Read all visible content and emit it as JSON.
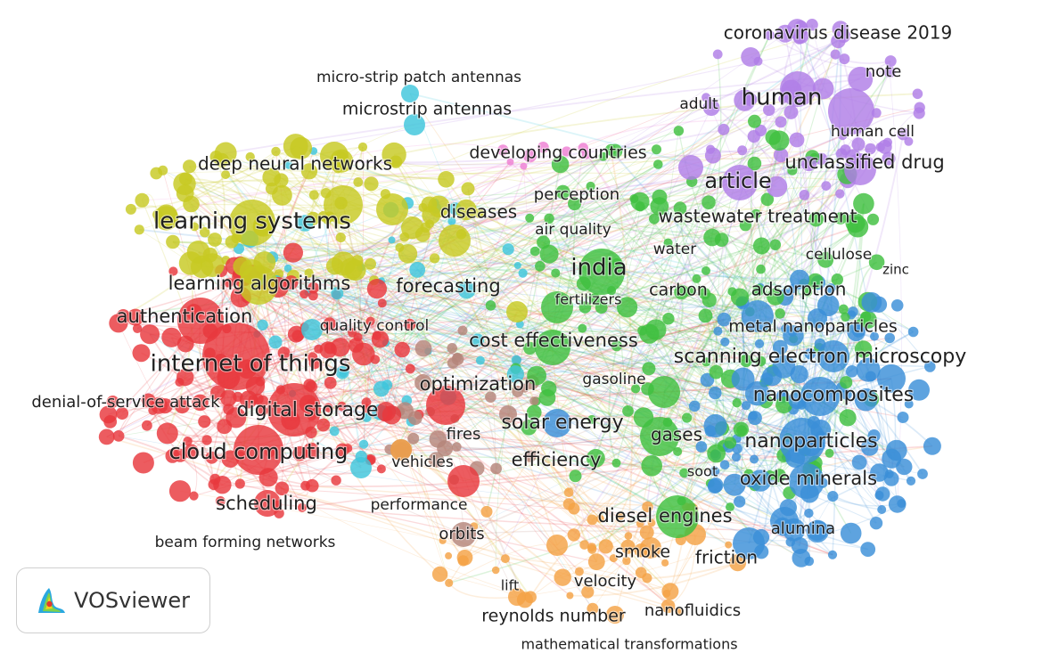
{
  "colors": {
    "red": "#e8383d",
    "yellow": "#c7c922",
    "cyan": "#3ec6dc",
    "purple": "#b07ee6",
    "green": "#3fbf3f",
    "blue": "#3b8fd8",
    "orange": "#f4a245",
    "brown": "#b5857a",
    "pink": "#ee7fd3"
  },
  "keywords": [
    {
      "label": "coronavirus disease 2019",
      "cluster": "purple"
    },
    {
      "label": "note",
      "cluster": "purple"
    },
    {
      "label": "adult",
      "cluster": "purple"
    },
    {
      "label": "human",
      "cluster": "purple"
    },
    {
      "label": "human cell",
      "cluster": "purple"
    },
    {
      "label": "article",
      "cluster": "purple"
    },
    {
      "label": "unclassified drug",
      "cluster": "purple"
    },
    {
      "label": "cellulose",
      "cluster": "purple"
    },
    {
      "label": "zinc",
      "cluster": "purple"
    },
    {
      "label": "micro-strip patch antennas",
      "cluster": "cyan"
    },
    {
      "label": "microstrip antennas",
      "cluster": "cyan"
    },
    {
      "label": "developing countries",
      "cluster": "pink"
    },
    {
      "label": "deep neural networks",
      "cluster": "yellow"
    },
    {
      "label": "learning systems",
      "cluster": "yellow"
    },
    {
      "label": "diseases",
      "cluster": "yellow"
    },
    {
      "label": "perception",
      "cluster": "green"
    },
    {
      "label": "air quality",
      "cluster": "green"
    },
    {
      "label": "wastewater treatment",
      "cluster": "green"
    },
    {
      "label": "water",
      "cluster": "green"
    },
    {
      "label": "india",
      "cluster": "green"
    },
    {
      "label": "carbon",
      "cluster": "green"
    },
    {
      "label": "adsorption",
      "cluster": "blue"
    },
    {
      "label": "learning algorithms",
      "cluster": "yellow"
    },
    {
      "label": "forecasting",
      "cluster": "yellow"
    },
    {
      "label": "fertilizers",
      "cluster": "green"
    },
    {
      "label": "authentication",
      "cluster": "red"
    },
    {
      "label": "quality control",
      "cluster": "cyan"
    },
    {
      "label": "metal nanoparticles",
      "cluster": "blue"
    },
    {
      "label": "cost effectiveness",
      "cluster": "green"
    },
    {
      "label": "internet of things",
      "cluster": "red"
    },
    {
      "label": "scanning electron microscopy",
      "cluster": "blue"
    },
    {
      "label": "optimization",
      "cluster": "red"
    },
    {
      "label": "gasoline",
      "cluster": "green"
    },
    {
      "label": "nanocomposites",
      "cluster": "blue"
    },
    {
      "label": "denial-of-service attack",
      "cluster": "red"
    },
    {
      "label": "digital storage",
      "cluster": "red"
    },
    {
      "label": "solar energy",
      "cluster": "green"
    },
    {
      "label": "fires",
      "cluster": "red"
    },
    {
      "label": "gases",
      "cluster": "green"
    },
    {
      "label": "nanoparticles",
      "cluster": "blue"
    },
    {
      "label": "cloud computing",
      "cluster": "red"
    },
    {
      "label": "vehicles",
      "cluster": "red"
    },
    {
      "label": "efficiency",
      "cluster": "green"
    },
    {
      "label": "soot",
      "cluster": "green"
    },
    {
      "label": "oxide minerals",
      "cluster": "blue"
    },
    {
      "label": "scheduling",
      "cluster": "red"
    },
    {
      "label": "performance",
      "cluster": "brown"
    },
    {
      "label": "diesel engines",
      "cluster": "green"
    },
    {
      "label": "alumina",
      "cluster": "blue"
    },
    {
      "label": "orbits",
      "cluster": "brown"
    },
    {
      "label": "beam forming networks",
      "cluster": "cyan"
    },
    {
      "label": "smoke",
      "cluster": "orange"
    },
    {
      "label": "friction",
      "cluster": "blue"
    },
    {
      "label": "lift",
      "cluster": "orange"
    },
    {
      "label": "velocity",
      "cluster": "orange"
    },
    {
      "label": "reynolds number",
      "cluster": "orange"
    },
    {
      "label": "nanofluidics",
      "cluster": "orange"
    },
    {
      "label": "mathematical transformations",
      "cluster": "orange"
    }
  ],
  "branding": {
    "name": "VOSviewer",
    "logo_icon": "vosviewer-logo-icon"
  }
}
